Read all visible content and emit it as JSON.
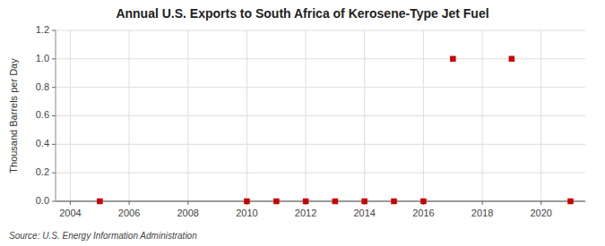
{
  "chart_data": {
    "type": "scatter",
    "title": "Annual U.S. Exports to South Africa of Kerosene-Type Jet Fuel",
    "ylabel": "Thousand Barrels per Day",
    "source": "Source: U.S. Energy Information Administration",
    "x": [
      2005,
      2010,
      2011,
      2012,
      2013,
      2014,
      2015,
      2016,
      2017,
      2019,
      2021
    ],
    "values": [
      0,
      0,
      0,
      0,
      0,
      0,
      0,
      0,
      1.0,
      1.0,
      0
    ],
    "color": "#cc0000",
    "marker": "square",
    "xlim": [
      2003.5,
      2021.5
    ],
    "xticks": [
      2004,
      2006,
      2008,
      2010,
      2012,
      2014,
      2016,
      2018,
      2020
    ],
    "ylim": [
      0.0,
      1.2
    ],
    "yticks": [
      {
        "value": 0.0,
        "label": "0.0"
      },
      0.2,
      0.4,
      0.6,
      0.8,
      {
        "value": 1.0,
        "label": "1.0"
      },
      1.2
    ],
    "grid": true
  }
}
